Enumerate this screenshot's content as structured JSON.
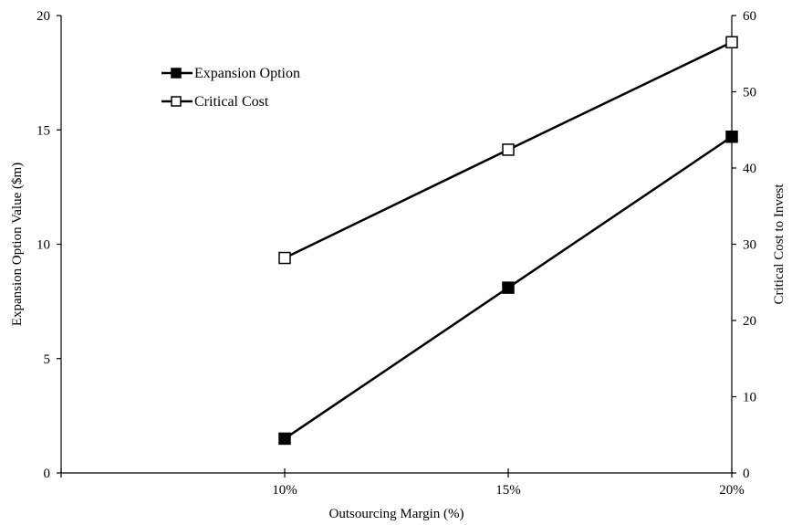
{
  "chart_data": {
    "type": "line",
    "categories": [
      "10%",
      "15%",
      "20%"
    ],
    "xlabel": "Outsourcing Margin (%)",
    "ylabel": "Expansion Option Value ($m)",
    "y2label": "Critical Cost to Invest",
    "ylim": [
      0,
      20
    ],
    "yticks": [
      0,
      5,
      10,
      15,
      20
    ],
    "y2lim": [
      0,
      60
    ],
    "y2ticks": [
      0,
      10,
      20,
      30,
      40,
      50,
      60
    ],
    "grid": false,
    "legend_position": "top-left",
    "series": [
      {
        "name": "Expansion Option",
        "axis": "left",
        "marker": "filled-square",
        "color": "#000000",
        "values": [
          1.5,
          8.1,
          14.7
        ]
      },
      {
        "name": "Critical Cost",
        "axis": "right",
        "marker": "open-square",
        "color": "#000000",
        "values": [
          28.2,
          42.4,
          56.5
        ]
      }
    ]
  }
}
